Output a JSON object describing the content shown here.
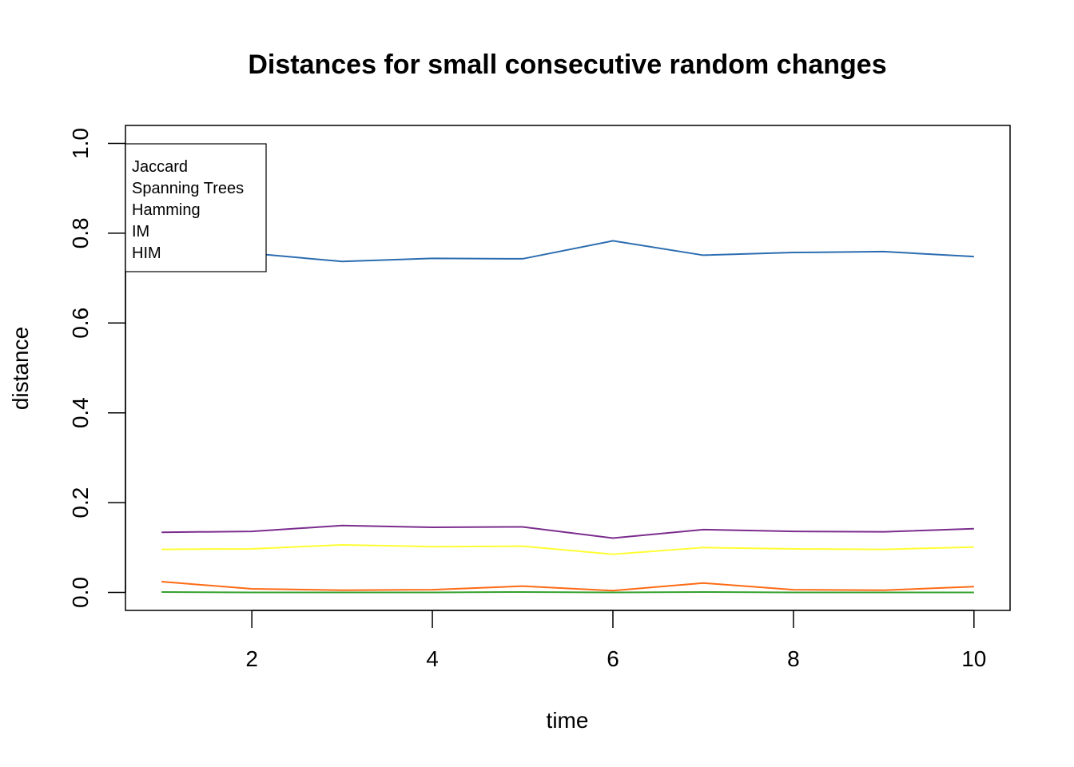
{
  "chart_data": {
    "type": "line",
    "title": "Distances for  small consecutive random changes",
    "xlabel": "time",
    "ylabel": "distance",
    "x": [
      1,
      2,
      3,
      4,
      5,
      6,
      7,
      8,
      9,
      10
    ],
    "xlim": [
      0.6,
      10.4
    ],
    "ylim": [
      -0.04,
      1.04
    ],
    "x_ticks": [
      2,
      4,
      6,
      8,
      10
    ],
    "y_ticks": [
      0.0,
      0.2,
      0.4,
      0.6,
      0.8,
      1.0
    ],
    "x_tick_labels": [
      "2",
      "4",
      "6",
      "8",
      "10"
    ],
    "y_tick_labels": [
      "0.0",
      "0.2",
      "0.4",
      "0.6",
      "0.8",
      "1.0"
    ],
    "grid": false,
    "legend_position": "top-left",
    "legend": [
      "Jaccard",
      "Spanning Trees",
      "Hamming",
      "IM",
      "HIM"
    ],
    "series": [
      {
        "color": "#2b6cb0",
        "values": [
          0.78,
          0.755,
          0.737,
          0.744,
          0.743,
          0.783,
          0.751,
          0.757,
          0.759,
          0.748
        ]
      },
      {
        "color": "#7b2d8e",
        "values": [
          0.134,
          0.136,
          0.149,
          0.145,
          0.146,
          0.121,
          0.14,
          0.136,
          0.135,
          0.142
        ]
      },
      {
        "color": "#ffff33",
        "values": [
          0.096,
          0.097,
          0.106,
          0.102,
          0.103,
          0.085,
          0.1,
          0.097,
          0.096,
          0.101
        ]
      },
      {
        "color": "#ff6a13",
        "values": [
          0.024,
          0.008,
          0.005,
          0.006,
          0.014,
          0.004,
          0.021,
          0.006,
          0.005,
          0.013
        ]
      },
      {
        "color": "#33a02c",
        "values": [
          0.001,
          0.0,
          0.0,
          0.0,
          0.001,
          0.0,
          0.001,
          0.0,
          0.0,
          0.0
        ]
      }
    ]
  }
}
